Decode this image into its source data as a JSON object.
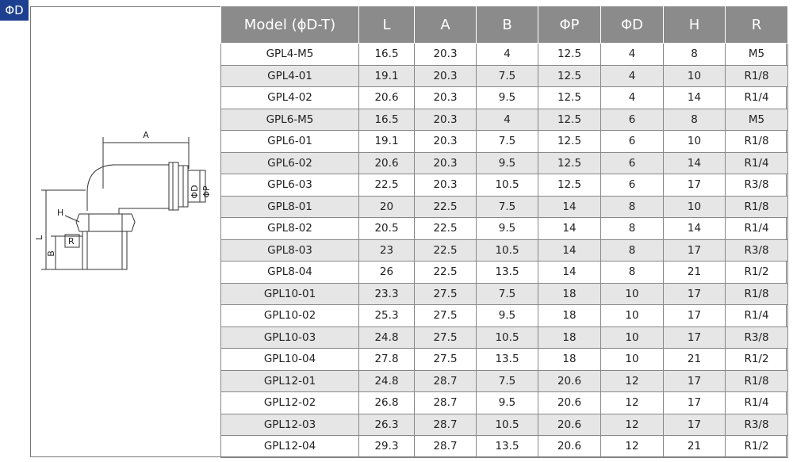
{
  "badge": "ΦD",
  "diagram": {
    "labels": {
      "a": "A",
      "d": "ΦD",
      "p": "ΦP",
      "h": "H",
      "l": "L",
      "b": "B",
      "r": "R"
    }
  },
  "table": {
    "header": [
      "Model (ϕD-T)",
      "L",
      "A",
      "B",
      "ΦP",
      "ΦD",
      "H",
      "R"
    ],
    "rows": [
      [
        "GPL4-M5",
        "16.5",
        "20.3",
        "4",
        "12.5",
        "4",
        "8",
        "M5"
      ],
      [
        "GPL4-01",
        "19.1",
        "20.3",
        "7.5",
        "12.5",
        "4",
        "10",
        "R1/8"
      ],
      [
        "GPL4-02",
        "20.6",
        "20.3",
        "9.5",
        "12.5",
        "4",
        "14",
        "R1/4"
      ],
      [
        "GPL6-M5",
        "16.5",
        "20.3",
        "4",
        "12.5",
        "6",
        "8",
        "M5"
      ],
      [
        "GPL6-01",
        "19.1",
        "20.3",
        "7.5",
        "12.5",
        "6",
        "10",
        "R1/8"
      ],
      [
        "GPL6-02",
        "20.6",
        "20.3",
        "9.5",
        "12.5",
        "6",
        "14",
        "R1/4"
      ],
      [
        "GPL6-03",
        "22.5",
        "20.3",
        "10.5",
        "12.5",
        "6",
        "17",
        "R3/8"
      ],
      [
        "GPL8-01",
        "20",
        "22.5",
        "7.5",
        "14",
        "8",
        "10",
        "R1/8"
      ],
      [
        "GPL8-02",
        "20.5",
        "22.5",
        "9.5",
        "14",
        "8",
        "14",
        "R1/4"
      ],
      [
        "GPL8-03",
        "23",
        "22.5",
        "10.5",
        "14",
        "8",
        "17",
        "R3/8"
      ],
      [
        "GPL8-04",
        "26",
        "22.5",
        "13.5",
        "14",
        "8",
        "21",
        "R1/2"
      ],
      [
        "GPL10-01",
        "23.3",
        "27.5",
        "7.5",
        "18",
        "10",
        "17",
        "R1/8"
      ],
      [
        "GPL10-02",
        "25.3",
        "27.5",
        "9.5",
        "18",
        "10",
        "17",
        "R1/4"
      ],
      [
        "GPL10-03",
        "24.8",
        "27.5",
        "10.5",
        "18",
        "10",
        "17",
        "R3/8"
      ],
      [
        "GPL10-04",
        "27.8",
        "27.5",
        "13.5",
        "18",
        "10",
        "21",
        "R1/2"
      ],
      [
        "GPL12-01",
        "24.8",
        "28.7",
        "7.5",
        "20.6",
        "12",
        "17",
        "R1/8"
      ],
      [
        "GPL12-02",
        "26.8",
        "28.7",
        "9.5",
        "20.6",
        "12",
        "17",
        "R1/4"
      ],
      [
        "GPL12-03",
        "26.3",
        "28.7",
        "10.5",
        "20.6",
        "12",
        "17",
        "R3/8"
      ],
      [
        "GPL12-04",
        "29.3",
        "28.7",
        "13.5",
        "20.6",
        "12",
        "21",
        "R1/2"
      ]
    ]
  }
}
